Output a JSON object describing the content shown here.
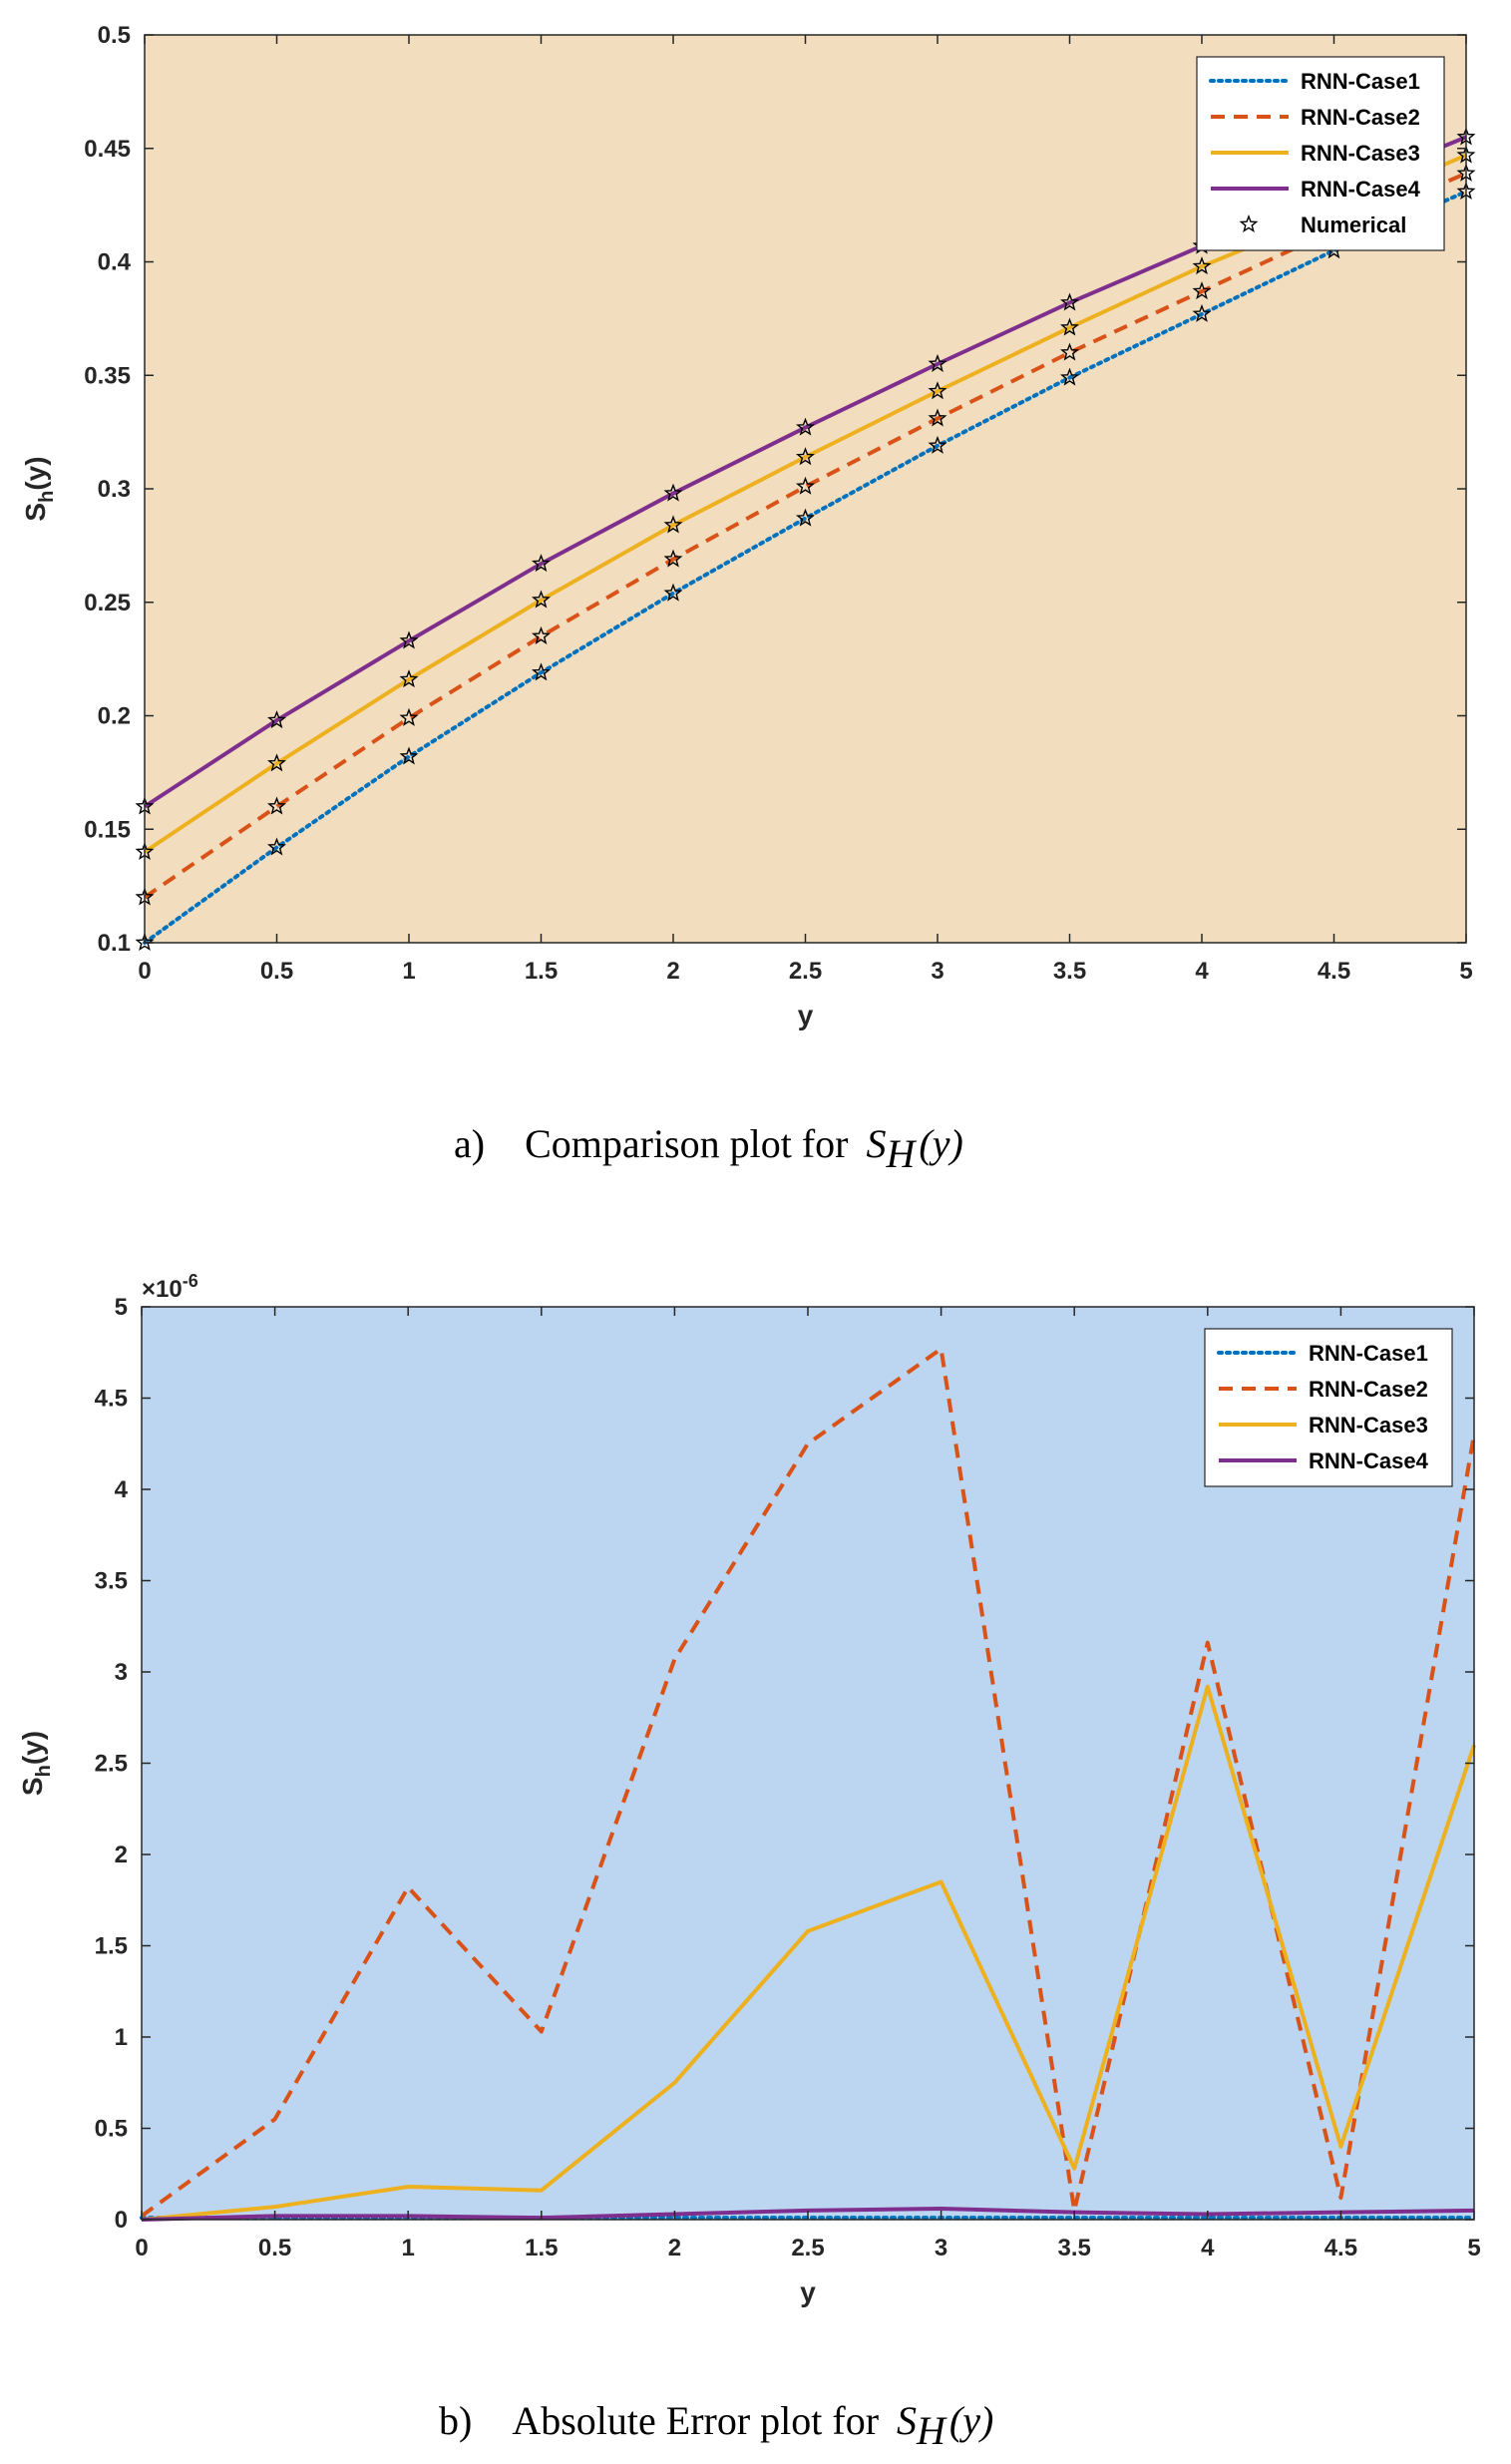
{
  "colors": {
    "case1": "#0072BD",
    "case2": "#D95319",
    "case3": "#EDB120",
    "case4": "#7E2F8E",
    "numerical": "#000000",
    "panel_a_bg": "#F2DDBE",
    "panel_b_bg": "#BCD5F0"
  },
  "chart_data": [
    {
      "type": "line",
      "caption": {
        "label": "a)",
        "text": "Comparison plot for",
        "math_base": "S",
        "math_sub": "H",
        "math_arg": "(y)"
      },
      "xlabel": "y",
      "ylabel": {
        "base": "S",
        "sub": "h",
        "arg": "(y)"
      },
      "xlim": [
        0,
        5
      ],
      "ylim": [
        0.1,
        0.5
      ],
      "xticks": [
        "0",
        "0.5",
        "1",
        "1.5",
        "2",
        "2.5",
        "3",
        "3.5",
        "4",
        "4.5",
        "5"
      ],
      "yticks": [
        "0.1",
        "0.15",
        "0.2",
        "0.25",
        "0.3",
        "0.35",
        "0.4",
        "0.45",
        "0.5"
      ],
      "legend_position": "top-right",
      "x": [
        0,
        0.5,
        1,
        1.5,
        2,
        2.5,
        3,
        3.5,
        4,
        4.5,
        5
      ],
      "series": [
        {
          "name": "RNN-Case1",
          "style": "dotted",
          "values": [
            0.1,
            0.142,
            0.182,
            0.219,
            0.254,
            0.287,
            0.319,
            0.349,
            0.377,
            0.405,
            0.431
          ]
        },
        {
          "name": "RNN-Case2",
          "style": "dashed",
          "values": [
            0.12,
            0.16,
            0.199,
            0.235,
            0.269,
            0.301,
            0.331,
            0.36,
            0.387,
            0.414,
            0.439
          ]
        },
        {
          "name": "RNN-Case3",
          "style": "solid",
          "values": [
            0.14,
            0.179,
            0.216,
            0.251,
            0.284,
            0.314,
            0.343,
            0.371,
            0.398,
            0.422,
            0.447
          ]
        },
        {
          "name": "RNN-Case4",
          "style": "solid",
          "values": [
            0.16,
            0.198,
            0.233,
            0.267,
            0.298,
            0.327,
            0.355,
            0.382,
            0.407,
            0.431,
            0.455
          ]
        }
      ],
      "markers": {
        "name": "Numerical",
        "symbol": "star"
      }
    },
    {
      "type": "line",
      "caption": {
        "label": "b)",
        "text": "Absolute Error plot for",
        "math_base": "S",
        "math_sub": "H",
        "math_arg": "(y)"
      },
      "xlabel": "y",
      "ylabel": {
        "base": "S",
        "sub": "h",
        "arg": "(y)"
      },
      "exponent_label": {
        "base": "×10",
        "power": "-6"
      },
      "xlim": [
        0,
        5
      ],
      "ylim": [
        0,
        5
      ],
      "xticks": [
        "0",
        "0.5",
        "1",
        "1.5",
        "2",
        "2.5",
        "3",
        "3.5",
        "4",
        "4.5",
        "5"
      ],
      "yticks": [
        "0",
        "0.5",
        "1",
        "1.5",
        "2",
        "2.5",
        "3",
        "3.5",
        "4",
        "4.5",
        "5"
      ],
      "legend_position": "top-right",
      "x": [
        0,
        0.5,
        1,
        1.5,
        2,
        2.5,
        3,
        3.5,
        4,
        4.5,
        5
      ],
      "series": [
        {
          "name": "RNN-Case1",
          "style": "dotted",
          "values": [
            0.01,
            0.01,
            0.01,
            0.01,
            0.01,
            0.01,
            0.01,
            0.01,
            0.01,
            0.01,
            0.01
          ]
        },
        {
          "name": "RNN-Case2",
          "style": "dashed",
          "values": [
            0.02,
            0.55,
            1.82,
            1.03,
            3.07,
            4.25,
            4.77,
            0.05,
            3.16,
            0.12,
            4.3
          ]
        },
        {
          "name": "RNN-Case3",
          "style": "solid",
          "values": [
            0.0,
            0.07,
            0.18,
            0.16,
            0.75,
            1.58,
            1.85,
            0.28,
            2.92,
            0.4,
            2.6
          ]
        },
        {
          "name": "RNN-Case4",
          "style": "solid",
          "values": [
            0.0,
            0.02,
            0.02,
            0.01,
            0.03,
            0.05,
            0.06,
            0.04,
            0.03,
            0.04,
            0.05
          ]
        }
      ]
    }
  ]
}
